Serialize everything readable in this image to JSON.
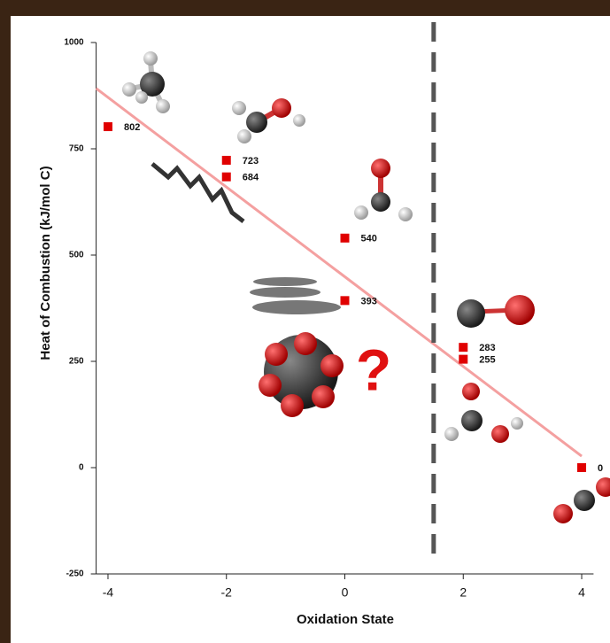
{
  "chart_data": {
    "type": "scatter",
    "x_label": "Oxidation State",
    "y_label": "Heat of Combustion (kJ/mol C)",
    "annotation": "?",
    "x": [
      -4,
      -2,
      -2,
      0,
      0,
      2,
      2,
      4
    ],
    "values": [
      802,
      723,
      684,
      540,
      393,
      283,
      255,
      0
    ],
    "color": "#e00000",
    "trendline": {
      "x": [
        -4.2,
        4
      ],
      "values": [
        892,
        27
      ],
      "color": "#f4a0a0"
    },
    "threshold_x": 1.5,
    "xlim": [
      -4.2,
      4.2
    ],
    "ylim": [
      -250,
      1000
    ],
    "xticks": [
      -4,
      -2,
      0,
      2,
      4
    ],
    "yticks": [
      -250,
      0,
      250,
      500,
      750,
      1000
    ]
  }
}
